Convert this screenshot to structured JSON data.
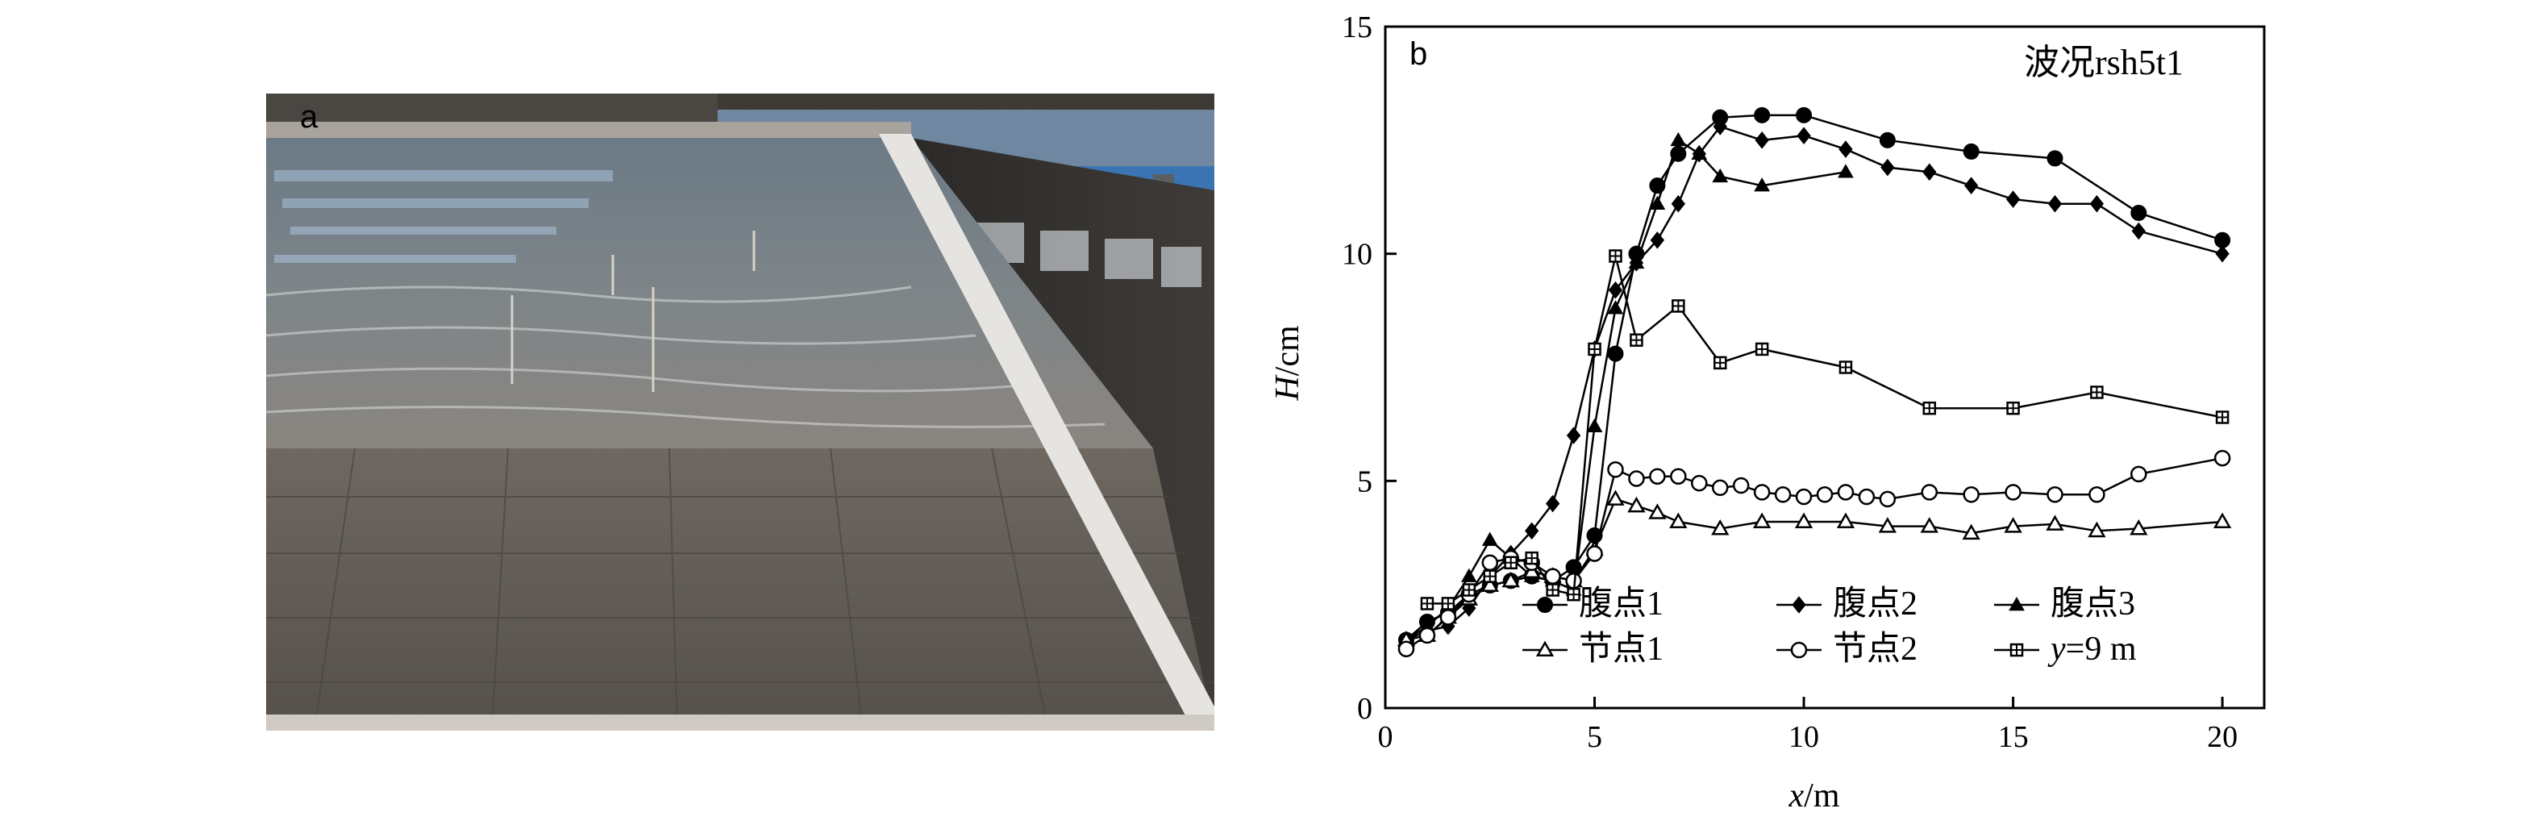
{
  "photo": {
    "label": "a",
    "description_icon": "wave-basin-photo"
  },
  "chart_data": {
    "type": "line",
    "panel_label": "b",
    "annotation": "波况rsh5t1",
    "xlabel_var": "x",
    "xlabel_unit": "/m",
    "ylabel_var": "H",
    "ylabel_unit": "/cm",
    "xlim": [
      0,
      21
    ],
    "ylim": [
      0,
      15
    ],
    "xticks": [
      0,
      5,
      10,
      15,
      20
    ],
    "yticks": [
      0,
      5,
      10,
      15
    ],
    "legend_position": "bottom-right",
    "series": [
      {
        "name": "腹点1",
        "marker": "circle-filled",
        "x": [
          0.5,
          1,
          1.5,
          2,
          2.5,
          3,
          3.5,
          4,
          4.5,
          5,
          5.5,
          6,
          6.5,
          7,
          8,
          9,
          10,
          12,
          14,
          16,
          18,
          20
        ],
        "y": [
          1.5,
          1.9,
          2.1,
          2.5,
          2.7,
          2.8,
          2.9,
          2.8,
          3.1,
          3.8,
          7.8,
          10.0,
          11.5,
          12.2,
          13.0,
          13.05,
          13.05,
          12.5,
          12.25,
          12.1,
          10.9,
          10.3
        ]
      },
      {
        "name": "腹点2",
        "marker": "diamond-filled",
        "x": [
          0.5,
          1,
          1.5,
          2,
          2.5,
          3,
          3.5,
          4,
          4.5,
          5,
          5.5,
          6,
          6.5,
          7,
          7.5,
          8,
          9,
          10,
          11,
          12,
          13,
          14,
          15,
          16,
          17,
          18,
          20
        ],
        "y": [
          1.5,
          1.7,
          1.8,
          2.2,
          2.9,
          3.4,
          3.9,
          4.5,
          6.0,
          7.9,
          9.2,
          9.8,
          10.3,
          11.1,
          12.2,
          12.8,
          12.5,
          12.6,
          12.3,
          11.9,
          11.8,
          11.5,
          11.2,
          11.1,
          11.1,
          10.5,
          10.0
        ]
      },
      {
        "name": "腹点3",
        "marker": "triangle-filled",
        "x": [
          0.5,
          1,
          1.5,
          2,
          2.5,
          3,
          3.5,
          4,
          4.5,
          5,
          5.5,
          6,
          6.5,
          7,
          7.5,
          8,
          9,
          11
        ],
        "y": [
          1.5,
          1.8,
          2.2,
          2.9,
          3.7,
          3.3,
          2.9,
          2.8,
          2.6,
          6.2,
          8.8,
          9.8,
          11.1,
          12.5,
          12.2,
          11.7,
          11.5,
          11.8
        ]
      },
      {
        "name": "节点1",
        "marker": "triangle-open",
        "x": [
          0.5,
          1,
          1.5,
          2,
          2.5,
          3,
          3.5,
          4,
          4.5,
          5,
          5.5,
          6,
          6.5,
          7,
          8,
          9,
          10,
          11,
          12,
          13,
          14,
          15,
          16,
          17,
          18,
          20
        ],
        "y": [
          1.5,
          1.6,
          2.0,
          2.4,
          2.7,
          2.8,
          3.0,
          2.9,
          2.8,
          3.5,
          4.6,
          4.45,
          4.3,
          4.1,
          3.95,
          4.1,
          4.1,
          4.1,
          4.0,
          4.0,
          3.85,
          4.0,
          4.05,
          3.9,
          3.95,
          4.1
        ]
      },
      {
        "name": "节点2",
        "marker": "circle-open",
        "x": [
          0.5,
          1,
          1.5,
          2,
          2.5,
          3,
          3.5,
          4,
          4.5,
          5,
          5.5,
          6,
          6.5,
          7,
          7.5,
          8,
          8.5,
          9,
          9.5,
          10,
          10.5,
          11,
          11.5,
          12,
          13,
          14,
          15,
          16,
          17,
          18,
          20
        ],
        "y": [
          1.3,
          1.6,
          2.0,
          2.5,
          3.2,
          3.3,
          3.2,
          2.9,
          2.8,
          3.4,
          5.25,
          5.05,
          5.1,
          5.1,
          4.95,
          4.85,
          4.9,
          4.75,
          4.7,
          4.65,
          4.7,
          4.75,
          4.65,
          4.6,
          4.75,
          4.7,
          4.75,
          4.7,
          4.7,
          5.15,
          5.5
        ]
      },
      {
        "name": "y=9 m",
        "marker": "square-crossed",
        "x": [
          1,
          1.5,
          2,
          2.5,
          3,
          3.5,
          4,
          4.5,
          5,
          5.5,
          6,
          7,
          8,
          9,
          11,
          13,
          15,
          17,
          20
        ],
        "y": [
          2.3,
          2.3,
          2.6,
          2.9,
          3.2,
          3.3,
          2.6,
          2.5,
          7.9,
          9.95,
          8.1,
          8.85,
          7.6,
          7.9,
          7.5,
          6.6,
          6.6,
          6.95,
          6.4
        ]
      }
    ]
  }
}
